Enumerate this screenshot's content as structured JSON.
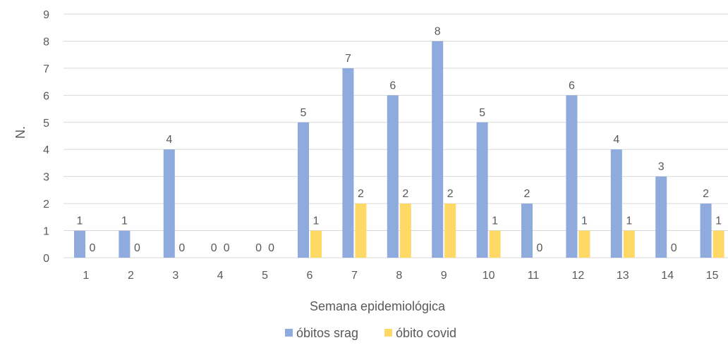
{
  "chart_data": {
    "type": "bar",
    "title": "",
    "xlabel": "Semana epidemiológica",
    "ylabel": "N.",
    "ylim": [
      0,
      9
    ],
    "y_ticks": [
      0,
      1,
      2,
      3,
      4,
      5,
      6,
      7,
      8,
      9
    ],
    "categories": [
      "1",
      "2",
      "3",
      "4",
      "5",
      "6",
      "7",
      "8",
      "9",
      "10",
      "11",
      "12",
      "13",
      "14",
      "15"
    ],
    "series": [
      {
        "name": "óbitos srag",
        "color": "#8faadc",
        "values": [
          1,
          1,
          4,
          0,
          0,
          5,
          7,
          6,
          8,
          5,
          2,
          6,
          4,
          3,
          2
        ]
      },
      {
        "name": "óbito covid",
        "color": "#ffd966",
        "values": [
          0,
          0,
          0,
          0,
          0,
          1,
          2,
          2,
          2,
          1,
          0,
          1,
          1,
          0,
          1
        ]
      }
    ],
    "grid": true,
    "legend": "bottom",
    "data_labels": true
  }
}
